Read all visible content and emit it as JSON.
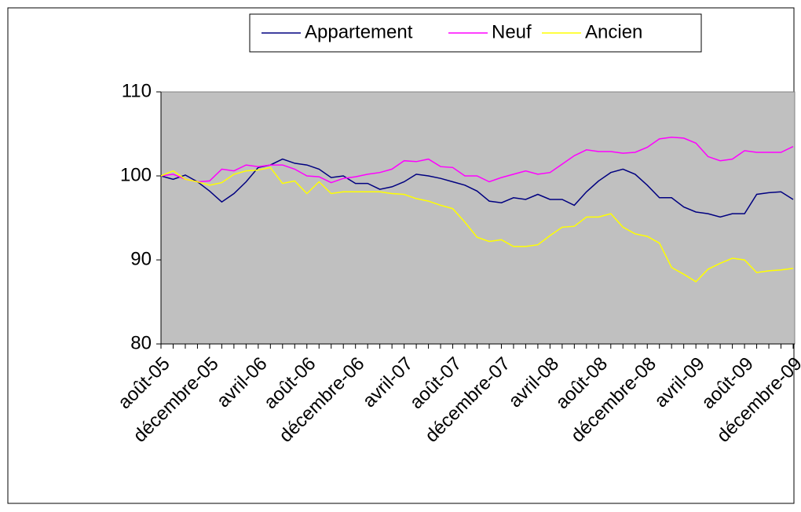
{
  "chart_data": {
    "type": "line",
    "categories": [
      "août-05",
      null,
      null,
      null,
      "décembre-05",
      null,
      null,
      null,
      "avril-06",
      null,
      null,
      null,
      "août-06",
      null,
      null,
      null,
      "décembre-06",
      null,
      null,
      null,
      "avril-07",
      null,
      null,
      null,
      "août-07",
      null,
      null,
      null,
      "décembre-07",
      null,
      null,
      null,
      "avril-08",
      null,
      null,
      null,
      "août-08",
      null,
      null,
      null,
      "décembre-08",
      null,
      null,
      null,
      "avril-09",
      null,
      null,
      null,
      "août-09",
      null,
      null,
      null,
      "décembre-09"
    ],
    "series": [
      {
        "name": "Appartement",
        "color": "#000080",
        "values": [
          100,
          99.6,
          100.1,
          99.3,
          98.2,
          96.9,
          97.9,
          99.3,
          101,
          101.3,
          102,
          101.5,
          101.3,
          100.8,
          99.8,
          100,
          99.1,
          99.1,
          98.4,
          98.7,
          99.3,
          100.2,
          100,
          99.7,
          99.3,
          98.9,
          98.2,
          97,
          96.8,
          97.4,
          97.2,
          97.8,
          97.2,
          97.2,
          96.5,
          98.1,
          99.4,
          100.4,
          100.8,
          100.2,
          98.9,
          97.4,
          97.4,
          96.3,
          95.7,
          95.5,
          95.1,
          95.5,
          95.5,
          97.8,
          98,
          98.1,
          97.2
        ]
      },
      {
        "name": "Neuf",
        "color": "#ff00ff",
        "values": [
          100,
          100.2,
          99.6,
          99.3,
          99.4,
          100.8,
          100.6,
          101.3,
          101.1,
          101.3,
          101.3,
          100.8,
          100,
          99.9,
          99.2,
          99.7,
          99.9,
          100.2,
          100.4,
          100.8,
          101.8,
          101.7,
          102,
          101.1,
          101,
          100,
          100,
          99.3,
          99.8,
          100.2,
          100.6,
          100.2,
          100.4,
          101.4,
          102.4,
          103.1,
          102.9,
          102.9,
          102.7,
          102.8,
          103.4,
          104.4,
          104.6,
          104.5,
          103.9,
          102.3,
          101.8,
          102,
          103,
          102.8,
          102.8,
          102.8,
          103.5
        ]
      },
      {
        "name": "Ancien",
        "color": "#ffff00",
        "values": [
          100,
          100.6,
          99.6,
          99.3,
          98.9,
          99.2,
          100.2,
          100.6,
          100.7,
          101,
          99.1,
          99.4,
          97.9,
          99.3,
          97.9,
          98.1,
          98.1,
          98.1,
          98.1,
          97.9,
          97.8,
          97.3,
          97,
          96.5,
          96.1,
          94.5,
          92.7,
          92.2,
          92.4,
          91.6,
          91.6,
          91.8,
          92.9,
          93.9,
          94,
          95.1,
          95.1,
          95.5,
          93.9,
          93.1,
          92.8,
          92,
          89.1,
          88.3,
          87.4,
          88.9,
          89.6,
          90.2,
          90,
          88.5,
          88.7,
          88.8,
          89
        ]
      }
    ],
    "ylim": [
      80,
      110
    ],
    "yticks": [
      80,
      90,
      100,
      110
    ],
    "plot_background": "#c0c0c0",
    "legend": "top"
  }
}
